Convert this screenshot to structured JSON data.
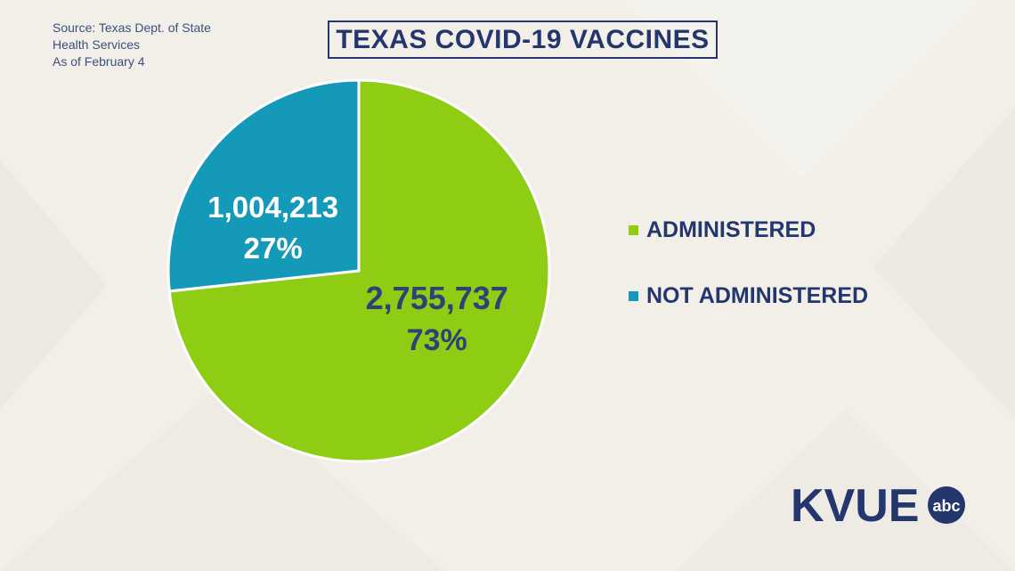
{
  "source": {
    "line1": "Source: Texas Dept. of State",
    "line2": "Health Services",
    "line3": "As of February 4"
  },
  "title": "TEXAS COVID-19 VACCINES",
  "chart_data": {
    "type": "pie",
    "title": "TEXAS COVID-19 VACCINES",
    "slices": [
      {
        "label": "ADMINISTERED",
        "value": 2755737,
        "value_label": "2,755,737",
        "percent": 73,
        "percent_label": "73%",
        "color": "#8fcc14",
        "text_color": "#2e4275"
      },
      {
        "label": "NOT ADMINISTERED",
        "value": 1004213,
        "value_label": "1,004,213",
        "percent": 27,
        "percent_label": "27%",
        "color": "#1499b8",
        "text_color": "#ffffff"
      }
    ],
    "legend_position": "right"
  },
  "logo": {
    "text": "KVUE",
    "badge": "abc",
    "color": "#23366d"
  }
}
